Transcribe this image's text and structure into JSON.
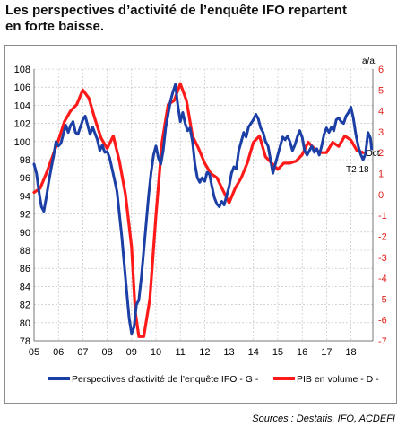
{
  "title_line1": "Les perspectives d’activité de l’enquête IFO repartent",
  "title_line2": "en forte baisse.",
  "source": "Sources : Destatis, IFO, ACDEFI",
  "colors": {
    "ifo": "#1c3fa6",
    "gdp": "#ff1a1a",
    "right_axis": "#e0201b",
    "grid": "#b9b9b9"
  },
  "chart_data": {
    "type": "line",
    "right_axis_unit": "a/a.",
    "x_ticks": [
      "05",
      "06",
      "07",
      "08",
      "09",
      "10",
      "11",
      "12",
      "13",
      "14",
      "15",
      "16",
      "17",
      "18"
    ],
    "x_range": [
      2005.0,
      2018.9
    ],
    "y_left": {
      "range": [
        78,
        108
      ],
      "ticks": [
        78,
        80,
        82,
        84,
        86,
        88,
        90,
        92,
        94,
        96,
        98,
        100,
        102,
        104,
        106,
        108
      ]
    },
    "y_right": {
      "range": [
        -7,
        6
      ],
      "ticks": [
        -7,
        -6,
        -5,
        -4,
        -3,
        -2,
        -1,
        0,
        1,
        2,
        3,
        4,
        5,
        6
      ]
    },
    "annotations": {
      "ifo_end": "Oct",
      "gdp_end": "T2 18"
    },
    "series": [
      {
        "name": "Perspectives d’activité de l’enquête IFO - G -",
        "axis": "left",
        "points": [
          [
            2005.0,
            97.5
          ],
          [
            2005.1,
            96.5
          ],
          [
            2005.2,
            94.5
          ],
          [
            2005.3,
            92.8
          ],
          [
            2005.4,
            92.3
          ],
          [
            2005.5,
            93.8
          ],
          [
            2005.6,
            95.5
          ],
          [
            2005.7,
            97.0
          ],
          [
            2005.8,
            98.4
          ],
          [
            2005.9,
            100.0
          ],
          [
            2006.0,
            99.5
          ],
          [
            2006.1,
            99.8
          ],
          [
            2006.2,
            100.8
          ],
          [
            2006.3,
            101.8
          ],
          [
            2006.4,
            101.0
          ],
          [
            2006.5,
            101.8
          ],
          [
            2006.6,
            102.2
          ],
          [
            2006.7,
            101.0
          ],
          [
            2006.8,
            100.8
          ],
          [
            2006.9,
            101.6
          ],
          [
            2007.0,
            102.4
          ],
          [
            2007.1,
            102.8
          ],
          [
            2007.2,
            101.8
          ],
          [
            2007.3,
            100.8
          ],
          [
            2007.4,
            101.6
          ],
          [
            2007.5,
            100.9
          ],
          [
            2007.6,
            100.2
          ],
          [
            2007.7,
            99.0
          ],
          [
            2007.8,
            99.6
          ],
          [
            2007.9,
            98.8
          ],
          [
            2008.0,
            98.9
          ],
          [
            2008.1,
            98.2
          ],
          [
            2008.2,
            97.0
          ],
          [
            2008.3,
            95.8
          ],
          [
            2008.4,
            94.5
          ],
          [
            2008.5,
            92.0
          ],
          [
            2008.6,
            89.5
          ],
          [
            2008.7,
            86.5
          ],
          [
            2008.8,
            83.5
          ],
          [
            2008.9,
            80.5
          ],
          [
            2009.0,
            78.8
          ],
          [
            2009.1,
            79.5
          ],
          [
            2009.2,
            82.0
          ],
          [
            2009.3,
            82.5
          ],
          [
            2009.4,
            85.0
          ],
          [
            2009.5,
            88.0
          ],
          [
            2009.6,
            91.0
          ],
          [
            2009.7,
            94.0
          ],
          [
            2009.8,
            96.5
          ],
          [
            2009.9,
            98.5
          ],
          [
            2010.0,
            99.5
          ],
          [
            2010.1,
            98.2
          ],
          [
            2010.2,
            97.5
          ],
          [
            2010.3,
            99.0
          ],
          [
            2010.4,
            101.5
          ],
          [
            2010.5,
            103.0
          ],
          [
            2010.6,
            104.5
          ],
          [
            2010.7,
            105.5
          ],
          [
            2010.8,
            106.3
          ],
          [
            2010.9,
            104.0
          ],
          [
            2011.0,
            102.2
          ],
          [
            2011.1,
            103.2
          ],
          [
            2011.2,
            102.0
          ],
          [
            2011.3,
            101.2
          ],
          [
            2011.4,
            101.5
          ],
          [
            2011.5,
            100.0
          ],
          [
            2011.6,
            97.5
          ],
          [
            2011.7,
            96.0
          ],
          [
            2011.8,
            95.5
          ],
          [
            2011.9,
            96.0
          ],
          [
            2012.0,
            95.6
          ],
          [
            2012.1,
            96.6
          ],
          [
            2012.2,
            96.4
          ],
          [
            2012.3,
            95.0
          ],
          [
            2012.4,
            93.8
          ],
          [
            2012.5,
            93.1
          ],
          [
            2012.6,
            92.8
          ],
          [
            2012.7,
            93.4
          ],
          [
            2012.8,
            93.0
          ],
          [
            2012.9,
            94.0
          ],
          [
            2013.0,
            95.0
          ],
          [
            2013.1,
            96.5
          ],
          [
            2013.2,
            97.2
          ],
          [
            2013.3,
            97.0
          ],
          [
            2013.4,
            99.0
          ],
          [
            2013.5,
            100.0
          ],
          [
            2013.6,
            101.0
          ],
          [
            2013.7,
            100.5
          ],
          [
            2013.8,
            101.6
          ],
          [
            2013.9,
            102.0
          ],
          [
            2014.0,
            102.4
          ],
          [
            2014.1,
            103.0
          ],
          [
            2014.2,
            102.5
          ],
          [
            2014.3,
            101.5
          ],
          [
            2014.4,
            101.0
          ],
          [
            2014.5,
            100.0
          ],
          [
            2014.6,
            99.5
          ],
          [
            2014.7,
            98.0
          ],
          [
            2014.8,
            96.5
          ],
          [
            2014.9,
            97.5
          ],
          [
            2015.0,
            98.5
          ],
          [
            2015.1,
            99.5
          ],
          [
            2015.2,
            100.5
          ],
          [
            2015.3,
            100.2
          ],
          [
            2015.4,
            100.6
          ],
          [
            2015.5,
            100.0
          ],
          [
            2015.6,
            99.0
          ],
          [
            2015.7,
            99.6
          ],
          [
            2015.8,
            100.5
          ],
          [
            2015.9,
            101.2
          ],
          [
            2016.0,
            100.5
          ],
          [
            2016.1,
            99.0
          ],
          [
            2016.2,
            98.5
          ],
          [
            2016.3,
            99.0
          ],
          [
            2016.4,
            99.5
          ],
          [
            2016.5,
            98.8
          ],
          [
            2016.6,
            99.2
          ],
          [
            2016.7,
            98.5
          ],
          [
            2016.8,
            99.5
          ],
          [
            2016.9,
            100.8
          ],
          [
            2017.0,
            101.5
          ],
          [
            2017.1,
            101.0
          ],
          [
            2017.2,
            101.6
          ],
          [
            2017.3,
            101.2
          ],
          [
            2017.4,
            102.4
          ],
          [
            2017.5,
            102.6
          ],
          [
            2017.6,
            102.2
          ],
          [
            2017.7,
            102.0
          ],
          [
            2017.8,
            102.8
          ],
          [
            2017.9,
            103.2
          ],
          [
            2018.0,
            103.8
          ],
          [
            2018.1,
            102.6
          ],
          [
            2018.2,
            100.8
          ],
          [
            2018.3,
            99.5
          ],
          [
            2018.4,
            98.6
          ],
          [
            2018.5,
            98.0
          ],
          [
            2018.6,
            98.6
          ],
          [
            2018.7,
            101.0
          ],
          [
            2018.8,
            100.4
          ],
          [
            2018.85,
            99.2
          ]
        ]
      },
      {
        "name": "PIB en volume - D -",
        "axis": "right",
        "points": [
          [
            2005.0,
            0.1
          ],
          [
            2005.25,
            0.3
          ],
          [
            2005.5,
            1.0
          ],
          [
            2005.75,
            1.8
          ],
          [
            2006.0,
            2.6
          ],
          [
            2006.25,
            3.5
          ],
          [
            2006.5,
            4.0
          ],
          [
            2006.75,
            4.3
          ],
          [
            2007.0,
            5.0
          ],
          [
            2007.25,
            4.6
          ],
          [
            2007.5,
            3.6
          ],
          [
            2007.75,
            2.7
          ],
          [
            2008.0,
            2.2
          ],
          [
            2008.25,
            2.8
          ],
          [
            2008.5,
            1.6
          ],
          [
            2008.75,
            0.0
          ],
          [
            2009.0,
            -2.5
          ],
          [
            2009.15,
            -5.6
          ],
          [
            2009.3,
            -6.8
          ],
          [
            2009.5,
            -6.8
          ],
          [
            2009.75,
            -5.0
          ],
          [
            2010.0,
            -1.0
          ],
          [
            2010.25,
            2.5
          ],
          [
            2010.5,
            4.3
          ],
          [
            2010.75,
            4.5
          ],
          [
            2011.0,
            5.3
          ],
          [
            2011.25,
            4.5
          ],
          [
            2011.5,
            2.8
          ],
          [
            2011.75,
            2.2
          ],
          [
            2012.0,
            1.5
          ],
          [
            2012.25,
            1.0
          ],
          [
            2012.5,
            0.8
          ],
          [
            2012.75,
            0.2
          ],
          [
            2013.0,
            -0.4
          ],
          [
            2013.25,
            0.3
          ],
          [
            2013.5,
            0.8
          ],
          [
            2013.75,
            1.5
          ],
          [
            2014.0,
            2.5
          ],
          [
            2014.25,
            2.8
          ],
          [
            2014.5,
            1.8
          ],
          [
            2014.75,
            1.5
          ],
          [
            2015.0,
            1.2
          ],
          [
            2015.25,
            1.5
          ],
          [
            2015.5,
            1.5
          ],
          [
            2015.75,
            1.6
          ],
          [
            2016.0,
            1.9
          ],
          [
            2016.25,
            2.5
          ],
          [
            2016.5,
            2.2
          ],
          [
            2016.75,
            2.0
          ],
          [
            2017.0,
            2.0
          ],
          [
            2017.25,
            2.5
          ],
          [
            2017.5,
            2.3
          ],
          [
            2017.75,
            2.8
          ],
          [
            2018.0,
            2.6
          ],
          [
            2018.25,
            2.1
          ],
          [
            2018.5,
            2.0
          ]
        ]
      }
    ]
  }
}
